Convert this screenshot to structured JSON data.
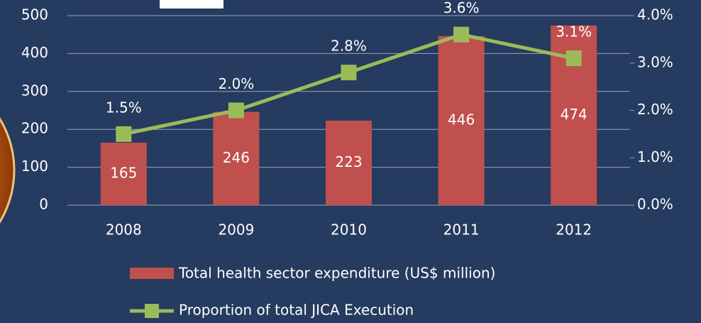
{
  "chart_data": {
    "type": "bar",
    "categories": [
      "2008",
      "2009",
      "2010",
      "2011",
      "2012"
    ],
    "series": [
      {
        "name": "Total health sector expenditure (US$ million)",
        "type": "bar",
        "color": "#c0504d",
        "values": [
          165,
          246,
          223,
          446,
          474
        ]
      },
      {
        "name": "Proportion of total JICA Execution",
        "type": "line",
        "axis": "y2",
        "color": "#9bbb59",
        "values": [
          1.5,
          2.0,
          2.8,
          3.6,
          3.1
        ],
        "value_labels": [
          "1.5%",
          "2.0%",
          "2.8%",
          "3.6%",
          "3.1%"
        ]
      }
    ],
    "ylim": [
      0,
      500
    ],
    "yticks": [
      0,
      100,
      200,
      300,
      400,
      500
    ],
    "y2lim": [
      0,
      4
    ],
    "y2ticks": [
      {
        "value": 0,
        "label": "0.0%"
      },
      {
        "value": 1,
        "label": "1.0%"
      },
      {
        "value": 2,
        "label": "2.0%"
      },
      {
        "value": 3,
        "label": "3.0%"
      },
      {
        "value": 4,
        "label": "4.0%"
      }
    ],
    "grid": true
  }
}
